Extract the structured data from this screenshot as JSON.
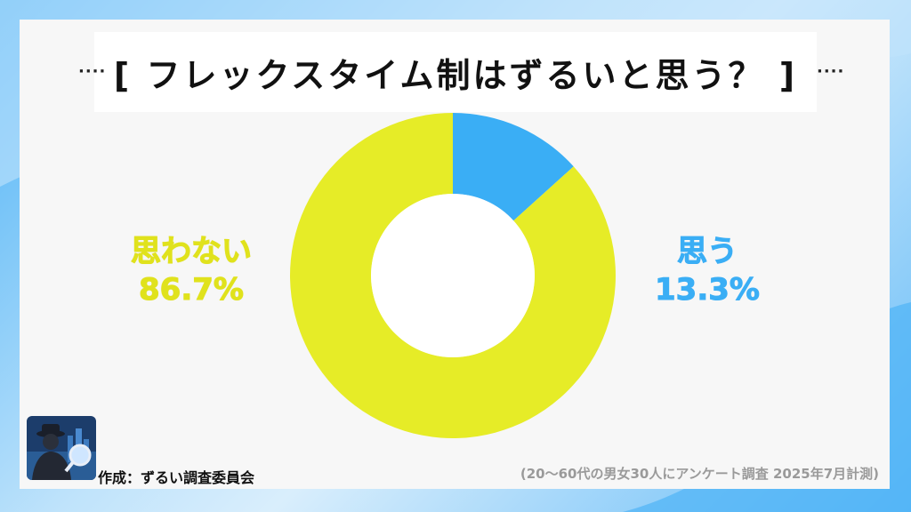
{
  "title": "[ フレックスタイム制はずるいと思う？ ]",
  "title_ornament": "····",
  "chart_data": {
    "type": "pie",
    "donut": true,
    "title": "[ フレックスタイム制はずるいと思う？ ]",
    "slices": [
      {
        "label": "思う",
        "value": 13.3,
        "value_label": "13.3%",
        "color": "#3aaef5"
      },
      {
        "label": "思わない",
        "value": 86.7,
        "value_label": "86.7%",
        "color": "#e6ec27"
      }
    ]
  },
  "footer": {
    "creator": "作成：ずるい調査委員会",
    "source": "(20～60代の男女30人にアンケート調査 2025年7月計測)"
  },
  "logo_icon": "detective-magnifier-icon"
}
